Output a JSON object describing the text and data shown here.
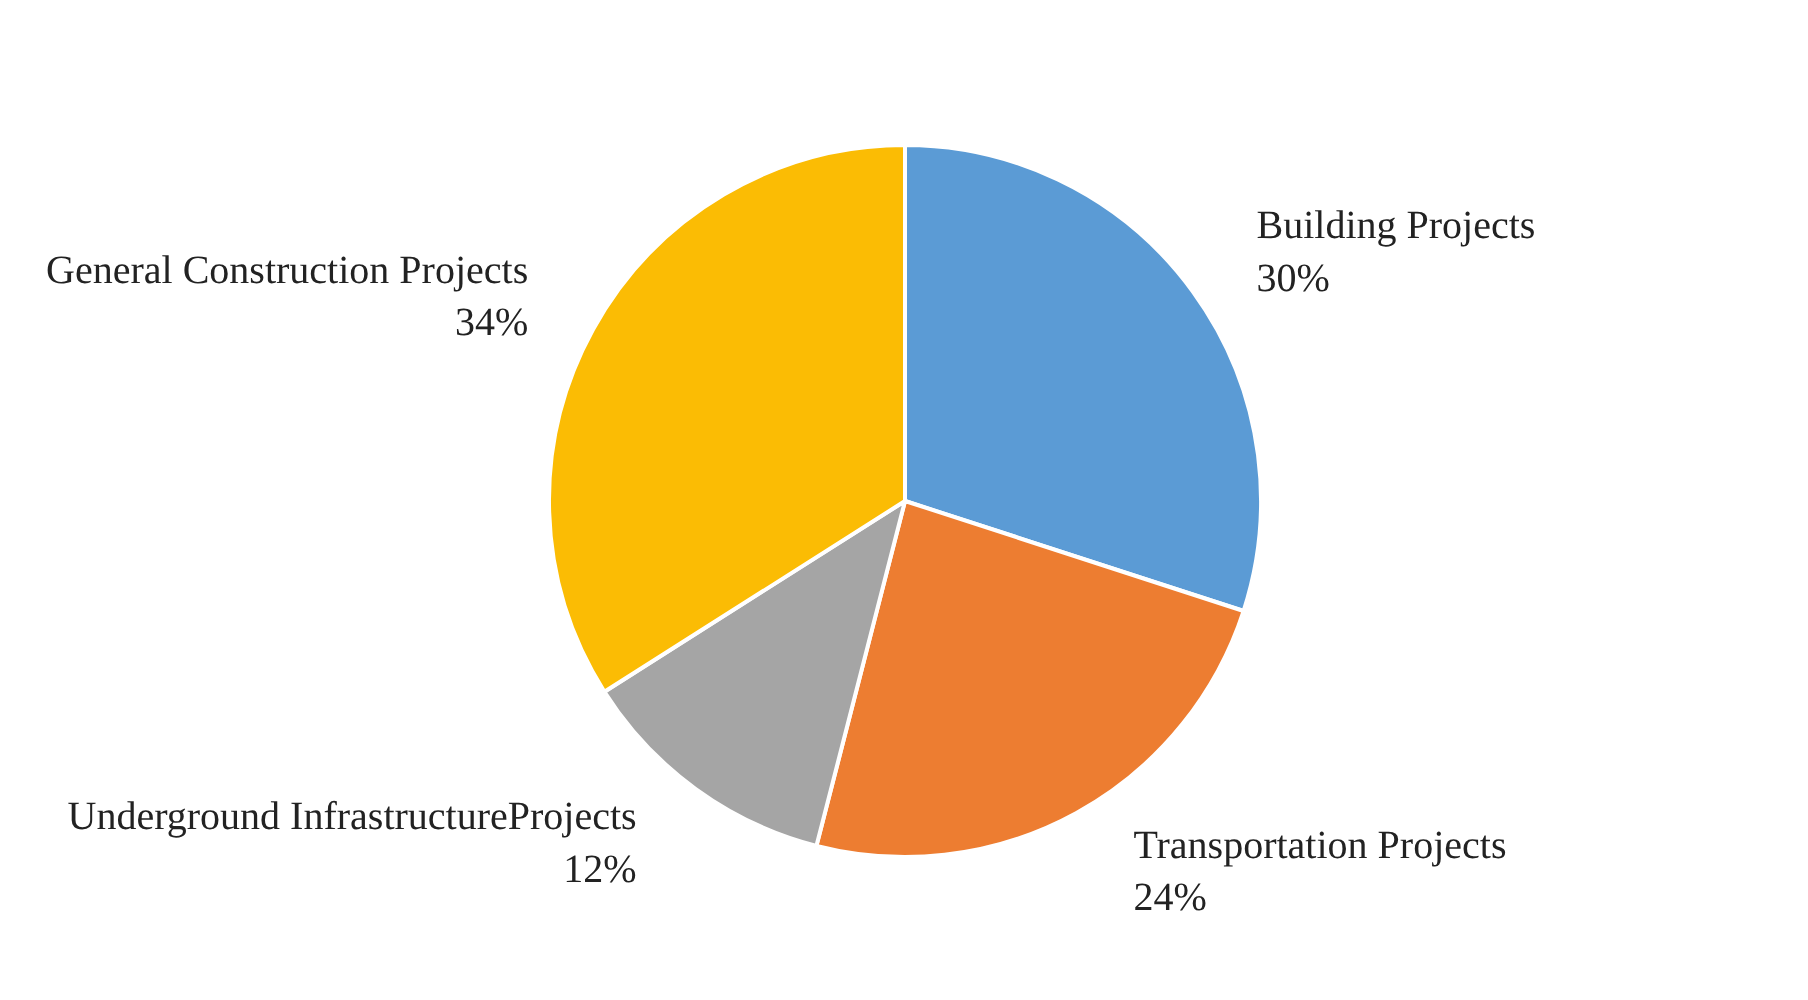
{
  "chart_data": {
    "type": "pie",
    "categories": [
      "Building Projects",
      "Transportation Projects",
      "Underground InfrastructureProjects",
      "General Construction Projects"
    ],
    "values": [
      30,
      24,
      12,
      34
    ],
    "colors": [
      "#5b9bd5",
      "#ed7d31",
      "#a5a5a5",
      "#fbbc04"
    ],
    "value_labels": [
      "30%",
      "24%",
      "12%",
      "34%"
    ]
  }
}
